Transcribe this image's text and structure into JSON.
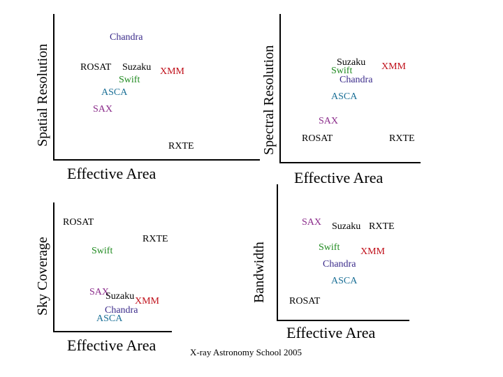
{
  "colors": {
    "axis": "#000000",
    "chandra": "#3a2a8a",
    "rosat": "#000000",
    "suzaku": "#000000",
    "xmm": "#c0101a",
    "swift": "#1f8a1f",
    "asca": "#1a6f96",
    "sax": "#8a2a8a",
    "rxte": "#000000"
  },
  "panels": {
    "spatial": {
      "y_label": "Spatial Resolution",
      "x_label": "Effective Area",
      "missions": {
        "chandra": "Chandra",
        "rosat": "ROSAT",
        "suzaku": "Suzaku",
        "xmm": "XMM",
        "swift": "Swift",
        "asca": "ASCA",
        "sax": "SAX",
        "rxte": "RXTE"
      }
    },
    "spectral": {
      "y_label": "Spectral Resolution",
      "x_label": "Effective Area",
      "missions": {
        "suzaku": "Suzaku",
        "swift": "Swift",
        "chandra": "Chandra",
        "xmm": "XMM",
        "asca": "ASCA",
        "sax": "SAX",
        "rosat": "ROSAT",
        "rxte": "RXTE"
      }
    },
    "sky": {
      "y_label": "Sky Coverage",
      "x_label": "Effective Area",
      "missions": {
        "rosat": "ROSAT",
        "rxte": "RXTE",
        "swift": "Swift",
        "sax": "SAX",
        "suzaku": "Suzaku",
        "xmm": "XMM",
        "chandra": "Chandra",
        "asca": "ASCA"
      }
    },
    "bandwidth": {
      "y_label": "Bandwidth",
      "x_label": "Effective Area",
      "missions": {
        "sax": "SAX",
        "suzaku": "Suzaku",
        "rxte": "RXTE",
        "swift": "Swift",
        "xmm": "XMM",
        "chandra": "Chandra",
        "asca": "ASCA",
        "rosat": "ROSAT"
      }
    }
  },
  "footer": "X-ray Astronomy School 2005"
}
